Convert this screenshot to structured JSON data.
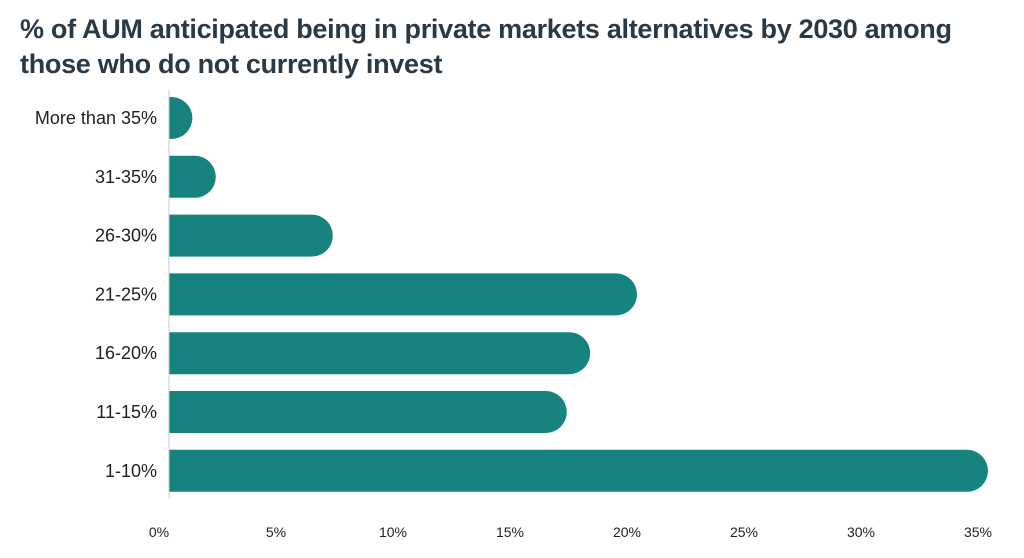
{
  "chart_data": {
    "type": "bar",
    "orientation": "horizontal",
    "title": "% of AUM anticipated being in private markets alternatives by 2030 among those who do not currently invest",
    "xlabel": "",
    "ylabel": "",
    "categories": [
      "More than 35%",
      "31-35%",
      "26-30%",
      "21-25%",
      "16-20%",
      "11-15%",
      "1-10%"
    ],
    "values": [
      1,
      2,
      7,
      20,
      18,
      17,
      35
    ],
    "xlim": [
      0,
      35
    ],
    "xticks": [
      0,
      5,
      10,
      15,
      20,
      25,
      30,
      35
    ],
    "xtick_labels": [
      "0%",
      "5%",
      "10%",
      "15%",
      "20%",
      "25%",
      "30%",
      "35%"
    ],
    "grid": false,
    "bar_color": "#16837f",
    "axis_color": "#c8c8c8"
  }
}
